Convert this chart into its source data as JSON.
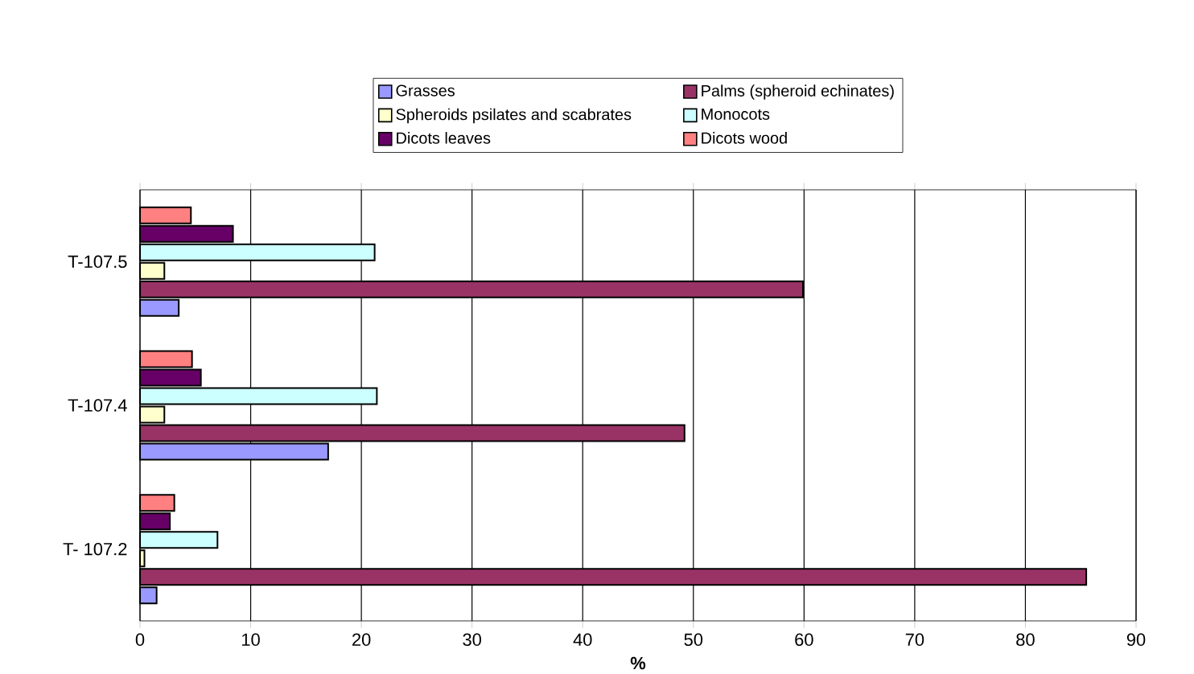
{
  "chart_data": {
    "type": "bar",
    "orientation": "horizontal",
    "xlabel": "%",
    "categories": [
      "T-107.5",
      "T-107.4",
      "T- 107.2"
    ],
    "series": [
      {
        "name": "Grasses",
        "color": "#9999ff",
        "values": [
          3.5,
          17.0,
          1.5
        ]
      },
      {
        "name": "Palms (spheroid echinates)",
        "color": "#993366",
        "values": [
          59.9,
          49.2,
          85.5
        ]
      },
      {
        "name": "Spheroids psilates and scabrates",
        "color": "#ffffcc",
        "values": [
          2.2,
          2.2,
          0.4
        ]
      },
      {
        "name": "Monocots",
        "color": "#ccffff",
        "values": [
          21.2,
          21.4,
          7.0
        ]
      },
      {
        "name": "Dicots leaves",
        "color": "#660066",
        "values": [
          8.4,
          5.5,
          2.7
        ]
      },
      {
        "name": "Dicots wood",
        "color": "#ff8080",
        "values": [
          4.6,
          4.7,
          3.1
        ]
      }
    ],
    "xlim": [
      0,
      90
    ],
    "xticks": [
      0,
      10,
      20,
      30,
      40,
      50,
      60,
      70,
      80,
      90
    ],
    "grid": "x",
    "legend": "top"
  }
}
